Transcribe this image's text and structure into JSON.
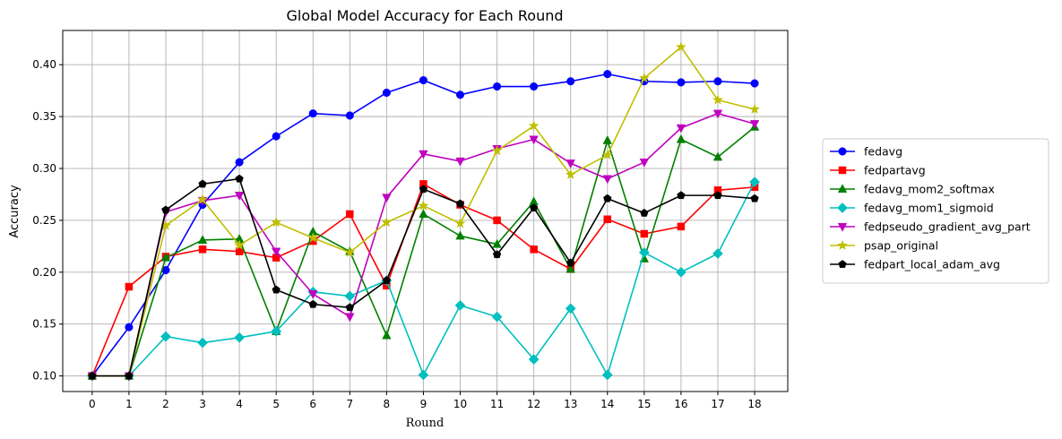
{
  "chart_data": {
    "type": "line",
    "title": "Global Model Accuracy for Each Round",
    "xlabel": "Round",
    "ylabel": "Accuracy",
    "x": [
      0,
      1,
      2,
      3,
      4,
      5,
      6,
      7,
      8,
      9,
      10,
      11,
      12,
      13,
      14,
      15,
      16,
      17,
      18
    ],
    "xlim": [
      -0.8,
      18.9
    ],
    "ylim": [
      0.085,
      0.433
    ],
    "yticks": [
      0.1,
      0.15,
      0.2,
      0.25,
      0.3,
      0.35,
      0.4
    ],
    "grid": true,
    "legend_position": "right",
    "series": [
      {
        "name": "fedavg",
        "color": "#0000ff",
        "marker": "circle",
        "values": [
          0.1,
          0.147,
          0.202,
          0.265,
          0.306,
          0.331,
          0.353,
          0.351,
          0.373,
          0.385,
          0.371,
          0.379,
          0.379,
          0.384,
          0.391,
          0.384,
          0.383,
          0.384,
          0.382
        ]
      },
      {
        "name": "fedpartavg",
        "color": "#ff0000",
        "marker": "square",
        "values": [
          0.1,
          0.186,
          0.215,
          0.222,
          0.22,
          0.214,
          0.23,
          0.256,
          0.187,
          0.285,
          0.265,
          0.25,
          0.222,
          0.203,
          0.251,
          0.237,
          0.244,
          0.279,
          0.282
        ]
      },
      {
        "name": "fedavg_mom2_softmax",
        "color": "#008000",
        "marker": "triangle-up",
        "values": [
          0.1,
          0.1,
          0.214,
          0.231,
          0.232,
          0.143,
          0.239,
          0.22,
          0.139,
          0.256,
          0.235,
          0.227,
          0.268,
          0.203,
          0.327,
          0.213,
          0.328,
          0.311,
          0.34
        ]
      },
      {
        "name": "fedavg_mom1_sigmoid",
        "color": "#00bfbf",
        "marker": "diamond",
        "values": [
          0.1,
          0.1,
          0.138,
          0.132,
          0.137,
          0.143,
          0.181,
          0.177,
          0.192,
          0.101,
          0.168,
          0.157,
          0.116,
          0.165,
          0.101,
          0.219,
          0.2,
          0.218,
          0.287
        ]
      },
      {
        "name": "fedpseudo_gradient_avg_part",
        "color": "#bf00bf",
        "marker": "triangle-down",
        "values": [
          0.1,
          0.1,
          0.258,
          0.269,
          0.274,
          0.22,
          0.179,
          0.157,
          0.272,
          0.314,
          0.307,
          0.319,
          0.328,
          0.305,
          0.29,
          0.306,
          0.339,
          0.353,
          0.343
        ]
      },
      {
        "name": "psap_original",
        "color": "#bfbf00",
        "marker": "star",
        "values": [
          0.1,
          0.1,
          0.245,
          0.27,
          0.226,
          0.248,
          0.233,
          0.219,
          0.248,
          0.264,
          0.247,
          0.317,
          0.341,
          0.294,
          0.313,
          0.387,
          0.417,
          0.366,
          0.357
        ]
      },
      {
        "name": "fedpart_local_adam_avg",
        "color": "#000000",
        "marker": "pentagon",
        "values": [
          0.1,
          0.1,
          0.26,
          0.285,
          0.29,
          0.183,
          0.169,
          0.166,
          0.192,
          0.28,
          0.266,
          0.217,
          0.262,
          0.209,
          0.271,
          0.257,
          0.274,
          0.274,
          0.271
        ]
      }
    ]
  }
}
